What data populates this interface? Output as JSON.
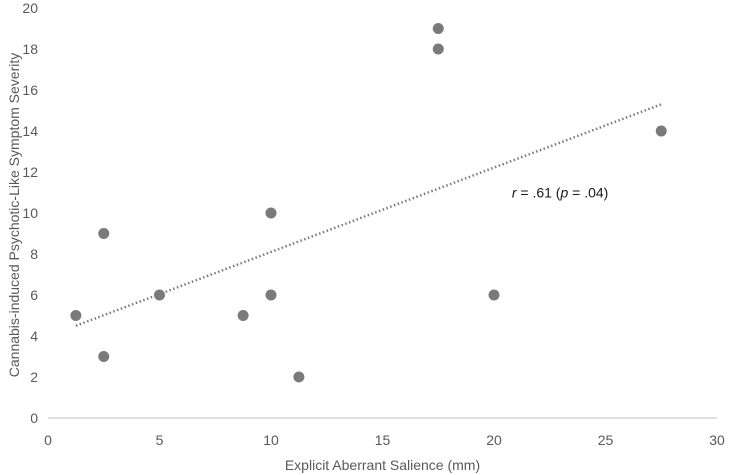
{
  "chart_data": {
    "type": "scatter",
    "title": "",
    "xlabel": "Explicit Aberrant Salience (mm)",
    "ylabel": "Cannabis-induced Psychotic-Like Symptom Severity",
    "xlim": [
      0,
      30
    ],
    "ylim": [
      0,
      20
    ],
    "xticks": [
      "0",
      "5",
      "10",
      "15",
      "20",
      "25",
      "30"
    ],
    "yticks": [
      "0",
      "2",
      "4",
      "6",
      "8",
      "10",
      "12",
      "14",
      "16",
      "18",
      "20"
    ],
    "grid": false,
    "legend": "none",
    "series": [
      {
        "points": [
          {
            "x": 1.25,
            "y": 5
          },
          {
            "x": 2.5,
            "y": 9
          },
          {
            "x": 2.5,
            "y": 3
          },
          {
            "x": 5,
            "y": 6
          },
          {
            "x": 8.75,
            "y": 5
          },
          {
            "x": 10,
            "y": 10
          },
          {
            "x": 10,
            "y": 6
          },
          {
            "x": 11.25,
            "y": 2
          },
          {
            "x": 17.5,
            "y": 19
          },
          {
            "x": 17.5,
            "y": 18
          },
          {
            "x": 20,
            "y": 6
          },
          {
            "x": 27.5,
            "y": 14
          }
        ],
        "color": "#7a7a7a"
      }
    ],
    "trendline": {
      "type": "linear",
      "style": "dotted",
      "color": "#7a7a7a",
      "x_start": 1.25,
      "x_end": 27.5,
      "y_start": 4.5,
      "y_end": 15.3
    },
    "annotation": {
      "r_symbol": "r",
      "r_text": " = .61 (",
      "p_symbol": "p",
      "p_text": " = .04)",
      "x": 20.8,
      "y": 11
    }
  }
}
